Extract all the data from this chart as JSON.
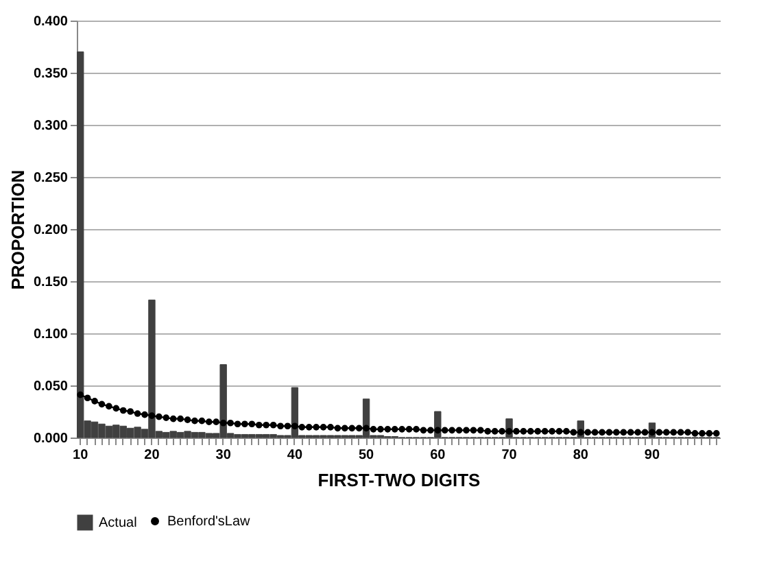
{
  "chart_data": {
    "type": "bar",
    "xlabel": "FIRST-TWO DIGITS",
    "ylabel": "PROPORTION",
    "categories": [
      "10",
      null,
      null,
      null,
      null,
      null,
      null,
      null,
      null,
      null,
      "20",
      null,
      null,
      null,
      null,
      null,
      null,
      null,
      null,
      null,
      "30",
      null,
      null,
      null,
      null,
      null,
      null,
      null,
      null,
      null,
      "40",
      null,
      null,
      null,
      null,
      null,
      null,
      null,
      null,
      null,
      "50",
      null,
      null,
      null,
      null,
      null,
      null,
      null,
      null,
      null,
      "60",
      null,
      null,
      null,
      null,
      null,
      null,
      null,
      null,
      null,
      "70",
      null,
      null,
      null,
      null,
      null,
      null,
      null,
      null,
      null,
      "80",
      null,
      null,
      null,
      null,
      null,
      null,
      null,
      null,
      null,
      "90",
      null,
      null,
      null,
      null,
      null,
      null,
      null,
      null,
      null
    ],
    "series": [
      {
        "name": "Actual",
        "color": "#404040",
        "values": [
          0.37,
          0.016,
          0.015,
          0.013,
          0.011,
          0.012,
          0.011,
          0.009,
          0.01,
          0.008,
          0.132,
          0.006,
          0.005,
          0.006,
          0.005,
          0.006,
          0.005,
          0.005,
          0.004,
          0.004,
          0.07,
          0.004,
          0.003,
          0.003,
          0.003,
          0.003,
          0.003,
          0.003,
          0.002,
          0.002,
          0.048,
          0.002,
          0.002,
          0.002,
          0.002,
          0.002,
          0.002,
          0.002,
          0.002,
          0.002,
          0.037,
          0.002,
          0.002,
          0.001,
          0.001,
          0,
          0,
          0,
          0,
          0,
          0.025,
          0,
          0,
          0,
          0,
          0,
          0,
          0,
          0,
          0,
          0.018,
          0,
          0,
          0,
          0,
          0,
          0,
          0,
          0,
          0,
          0.016,
          0,
          0,
          0,
          0,
          0,
          0,
          0,
          0,
          0,
          0.014,
          0,
          0,
          0,
          0,
          0,
          0,
          0,
          0,
          0
        ]
      },
      {
        "name": "Benford'sLaw",
        "type": "line",
        "color": "#000000",
        "values": [
          0.041,
          0.038,
          0.035,
          0.032,
          0.03,
          0.028,
          0.026,
          0.025,
          0.023,
          0.022,
          0.021,
          0.02,
          0.019,
          0.018,
          0.018,
          0.017,
          0.016,
          0.016,
          0.015,
          0.015,
          0.014,
          0.014,
          0.013,
          0.013,
          0.013,
          0.012,
          0.012,
          0.012,
          0.011,
          0.011,
          0.011,
          0.01,
          0.01,
          0.01,
          0.01,
          0.01,
          0.009,
          0.009,
          0.009,
          0.009,
          0.009,
          0.008,
          0.008,
          0.008,
          0.008,
          0.008,
          0.008,
          0.008,
          0.007,
          0.007,
          0.007,
          0.007,
          0.007,
          0.007,
          0.007,
          0.007,
          0.007,
          0.006,
          0.006,
          0.006,
          0.006,
          0.006,
          0.006,
          0.006,
          0.006,
          0.006,
          0.006,
          0.006,
          0.006,
          0.005,
          0.005,
          0.005,
          0.005,
          0.005,
          0.005,
          0.005,
          0.005,
          0.005,
          0.005,
          0.005,
          0.005,
          0.005,
          0.005,
          0.005,
          0.005,
          0.005,
          0.004,
          0.004,
          0.004,
          0.004
        ]
      }
    ],
    "ylim": [
      0,
      0.4
    ],
    "yticks": [
      {
        "value": 0,
        "label": "0.000"
      },
      {
        "value": 0.05,
        "label": "0.050"
      },
      {
        "value": 0.1,
        "label": "0.100"
      },
      {
        "value": 0.15,
        "label": "0.150"
      },
      {
        "value": 0.2,
        "label": "0.200"
      },
      {
        "value": 0.25,
        "label": "0.250"
      },
      {
        "value": 0.3,
        "label": "0.300"
      },
      {
        "value": 0.35,
        "label": "0.350"
      },
      {
        "value": 0.4,
        "label": "0.400"
      }
    ],
    "grid": "y",
    "legend": "bottom",
    "marker": "circle",
    "line_style": "solid"
  }
}
